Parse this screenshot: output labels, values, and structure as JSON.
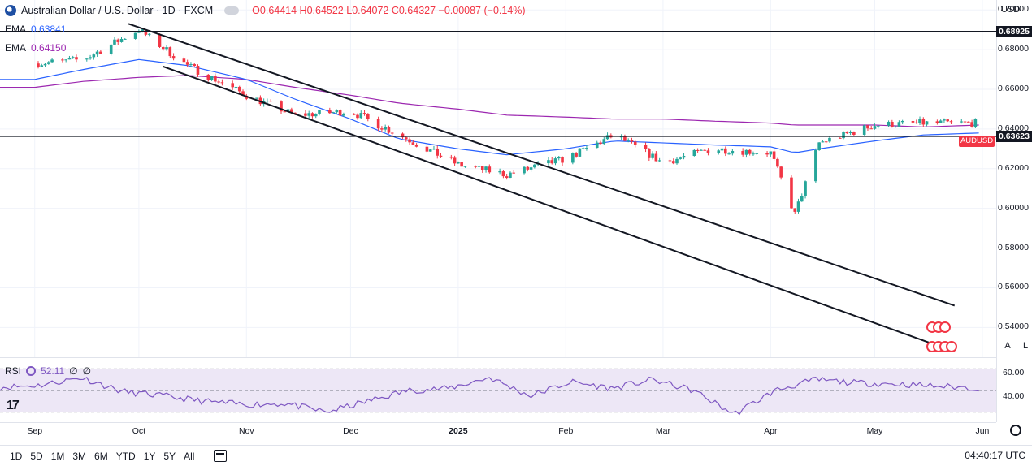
{
  "header": {
    "title": "Australian Dollar / U.S. Dollar · 1D · FXCM",
    "ohlc": "O0.64414 H0.64522 L0.64072 C0.64327 −0.00087 (−0.14%)",
    "ema1_label": "EMA",
    "ema1_value": "0.63841",
    "ema2_label": "EMA",
    "ema2_value": "0.64150"
  },
  "price_axis": {
    "currency": "USD",
    "ticks": [
      "0.70000",
      "0.68000",
      "0.66000",
      "0.64000",
      "0.62000",
      "0.60000",
      "0.58000",
      "0.56000",
      "0.54000"
    ],
    "level_high": "0.68925",
    "level_low": "0.63623",
    "symbol_tag": "AUDUSD"
  },
  "time_axis": {
    "labels": [
      "Sep",
      "Oct",
      "Nov",
      "Dec",
      "2025",
      "Feb",
      "Mar",
      "Apr",
      "May",
      "Jun"
    ]
  },
  "rsi": {
    "label": "RSI",
    "value": "52.11",
    "extra1": "∅",
    "extra2": "∅",
    "ticks": [
      "60.00",
      "40.00"
    ]
  },
  "side_buttons": {
    "auto": "A",
    "log": "L"
  },
  "bottom_bar": {
    "ranges": [
      "1D",
      "5D",
      "1M",
      "3M",
      "6M",
      "YTD",
      "1Y",
      "5Y",
      "All"
    ],
    "clock": "04:40:17 UTC"
  },
  "colors": {
    "up": "#26a69a",
    "down": "#f23645",
    "ema_fast": "#2962ff",
    "ema_slow": "#9c27b0",
    "rsi_line": "#7e57c2",
    "rsi_band": "#ede7f6"
  },
  "chart_data": {
    "type": "line",
    "series": [
      {
        "name": "AUDUSD",
        "x": [
          "2024-09-01",
          "2024-09-15",
          "2024-10-01",
          "2024-10-15",
          "2024-11-01",
          "2024-11-15",
          "2024-12-01",
          "2024-12-15",
          "2025-01-01",
          "2025-01-15",
          "2025-02-01",
          "2025-02-15",
          "2025-03-01",
          "2025-03-15",
          "2025-04-01",
          "2025-04-08",
          "2025-04-15",
          "2025-05-01",
          "2025-05-15",
          "2025-05-31"
        ],
        "values": [
          0.673,
          0.675,
          0.69,
          0.672,
          0.657,
          0.647,
          0.649,
          0.637,
          0.622,
          0.617,
          0.625,
          0.637,
          0.623,
          0.63,
          0.628,
          0.597,
          0.633,
          0.642,
          0.643,
          0.643
        ]
      },
      {
        "name": "EMA",
        "values": [
          0.665,
          0.67,
          0.675,
          0.672,
          0.665,
          0.655,
          0.645,
          0.635,
          0.63,
          0.627,
          0.63,
          0.634,
          0.633,
          0.632,
          0.631,
          0.628,
          0.63,
          0.634,
          0.637,
          0.638
        ]
      },
      {
        "name": "EMA",
        "values": [
          0.661,
          0.664,
          0.666,
          0.667,
          0.665,
          0.661,
          0.657,
          0.653,
          0.65,
          0.647,
          0.646,
          0.645,
          0.645,
          0.644,
          0.643,
          0.642,
          0.642,
          0.642,
          0.641,
          0.642
        ]
      }
    ],
    "levels": [
      0.68925,
      0.63623
    ],
    "ylim": [
      0.525,
      0.705
    ],
    "xlim": [
      "2024-08-22",
      "2025-06-05"
    ],
    "grid": true,
    "ylabel": "",
    "xlabel": ""
  },
  "rsi_data": {
    "values": [
      53,
      55,
      62,
      49,
      45,
      40,
      37,
      38,
      30,
      40,
      50,
      52,
      62,
      45,
      58,
      52,
      60,
      50,
      28,
      50,
      60,
      57,
      56,
      54,
      52
    ],
    "range": [
      20,
      80
    ]
  }
}
